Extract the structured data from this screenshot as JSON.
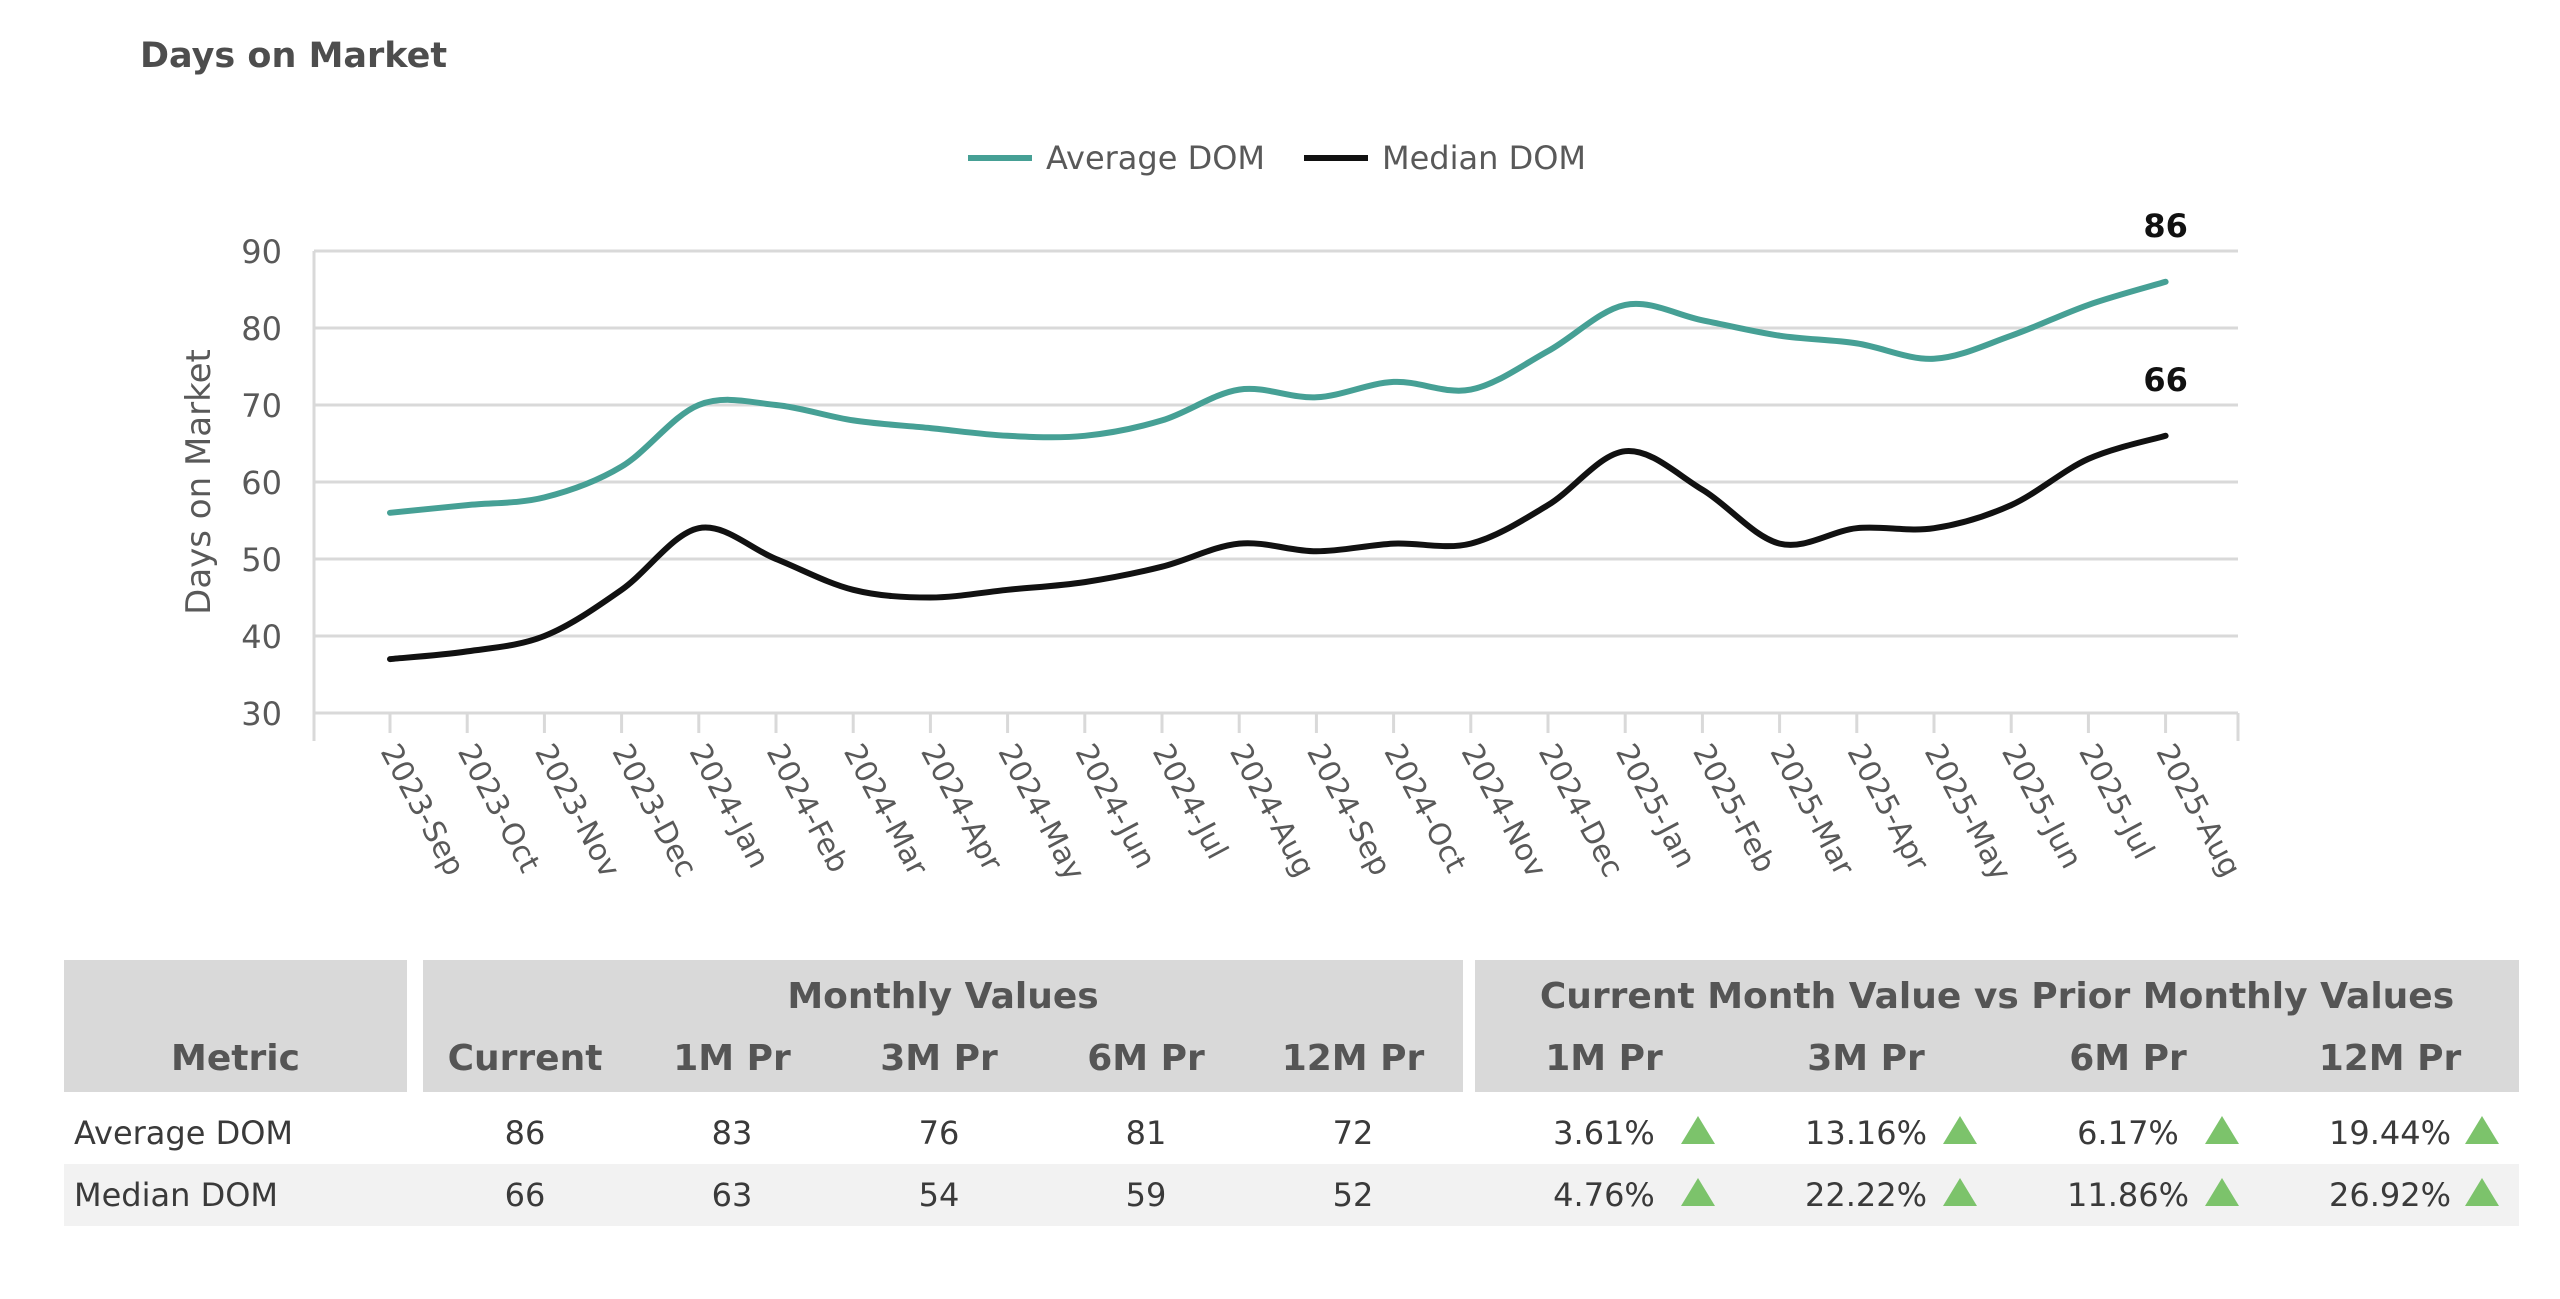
{
  "title": "Days on Market",
  "chart_data": {
    "type": "line",
    "ylabel": "Days on Market",
    "xlabel": "",
    "ylim": [
      30,
      90
    ],
    "yticks": [
      30,
      40,
      50,
      60,
      70,
      80,
      90
    ],
    "grid": true,
    "legend_position": "top-center",
    "categories": [
      "2023-Sep",
      "2023-Oct",
      "2023-Nov",
      "2023-Dec",
      "2024-Jan",
      "2024-Feb",
      "2024-Mar",
      "2024-Apr",
      "2024-May",
      "2024-Jun",
      "2024-Jul",
      "2024-Aug",
      "2024-Sep",
      "2024-Oct",
      "2024-Nov",
      "2024-Dec",
      "2025-Jan",
      "2025-Feb",
      "2025-Mar",
      "2025-Apr",
      "2025-May",
      "2025-Jun",
      "2025-Jul",
      "2025-Aug"
    ],
    "series": [
      {
        "name": "Average DOM",
        "color": "#46a095",
        "values": [
          56,
          57,
          58,
          62,
          70,
          70,
          68,
          67,
          66,
          66,
          68,
          72,
          71,
          73,
          72,
          77,
          83,
          81,
          79,
          78,
          76,
          79,
          83,
          86
        ],
        "end_label": "86"
      },
      {
        "name": "Median DOM",
        "color": "#111111",
        "values": [
          37,
          38,
          40,
          46,
          54,
          50,
          46,
          45,
          46,
          47,
          49,
          52,
          51,
          52,
          52,
          57,
          64,
          59,
          52,
          54,
          54,
          57,
          63,
          66
        ],
        "end_label": "66"
      }
    ]
  },
  "table": {
    "metric_header": "Metric",
    "monthly_group_header": "Monthly Values",
    "compare_group_header": "Current Month Value vs Prior Monthly Values",
    "monthly_columns": [
      "Current",
      "1M Pr",
      "3M Pr",
      "6M Pr",
      "12M Pr"
    ],
    "compare_columns": [
      "1M Pr",
      "3M Pr",
      "6M Pr",
      "12M Pr"
    ],
    "trend_color": "#7cc36b",
    "rows": [
      {
        "metric": "Average DOM",
        "monthly": [
          "86",
          "83",
          "76",
          "81",
          "72"
        ],
        "compare": [
          "3.61%",
          "13.16%",
          "6.17%",
          "19.44%"
        ],
        "trend": [
          "up",
          "up",
          "up",
          "up"
        ]
      },
      {
        "metric": "Median DOM",
        "monthly": [
          "66",
          "63",
          "54",
          "59",
          "52"
        ],
        "compare": [
          "4.76%",
          "22.22%",
          "11.86%",
          "26.92%"
        ],
        "trend": [
          "up",
          "up",
          "up",
          "up"
        ]
      }
    ]
  }
}
